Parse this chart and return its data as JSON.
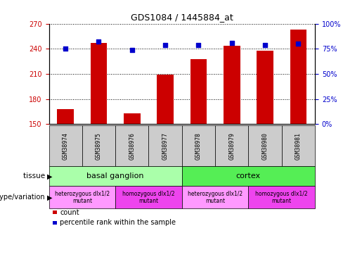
{
  "title": "GDS1084 / 1445884_at",
  "samples": [
    "GSM38974",
    "GSM38975",
    "GSM38976",
    "GSM38977",
    "GSM38978",
    "GSM38979",
    "GSM38980",
    "GSM38981"
  ],
  "counts": [
    168,
    247,
    163,
    209,
    228,
    244,
    238,
    263
  ],
  "percentiles": [
    75,
    82,
    74,
    79,
    79,
    81,
    79,
    80
  ],
  "ylim_left": [
    150,
    270
  ],
  "ylim_right": [
    0,
    100
  ],
  "yticks_left": [
    150,
    180,
    210,
    240,
    270
  ],
  "yticks_right": [
    0,
    25,
    50,
    75,
    100
  ],
  "bar_color": "#cc0000",
  "dot_color": "#0000cc",
  "tissue_groups": [
    {
      "label": "basal ganglion",
      "start": 0,
      "end": 3,
      "color": "#aaffaa"
    },
    {
      "label": "cortex",
      "start": 4,
      "end": 7,
      "color": "#55ee55"
    }
  ],
  "genotype_groups": [
    {
      "label": "heterozygous dlx1/2\nmutant",
      "start": 0,
      "end": 1,
      "color": "#ff99ff"
    },
    {
      "label": "homozygous dlx1/2\nmutant",
      "start": 2,
      "end": 3,
      "color": "#ee44ee"
    },
    {
      "label": "heterozygous dlx1/2\nmutant",
      "start": 4,
      "end": 5,
      "color": "#ff99ff"
    },
    {
      "label": "homozygous dlx1/2\nmutant",
      "start": 6,
      "end": 7,
      "color": "#ee44ee"
    }
  ],
  "legend_count_label": "count",
  "legend_pct_label": "percentile rank within the sample",
  "tissue_label": "tissue",
  "genotype_label": "genotype/variation",
  "bar_width": 0.5,
  "sample_box_color": "#cccccc",
  "fig_width": 5.15,
  "fig_height": 3.75,
  "dpi": 100
}
